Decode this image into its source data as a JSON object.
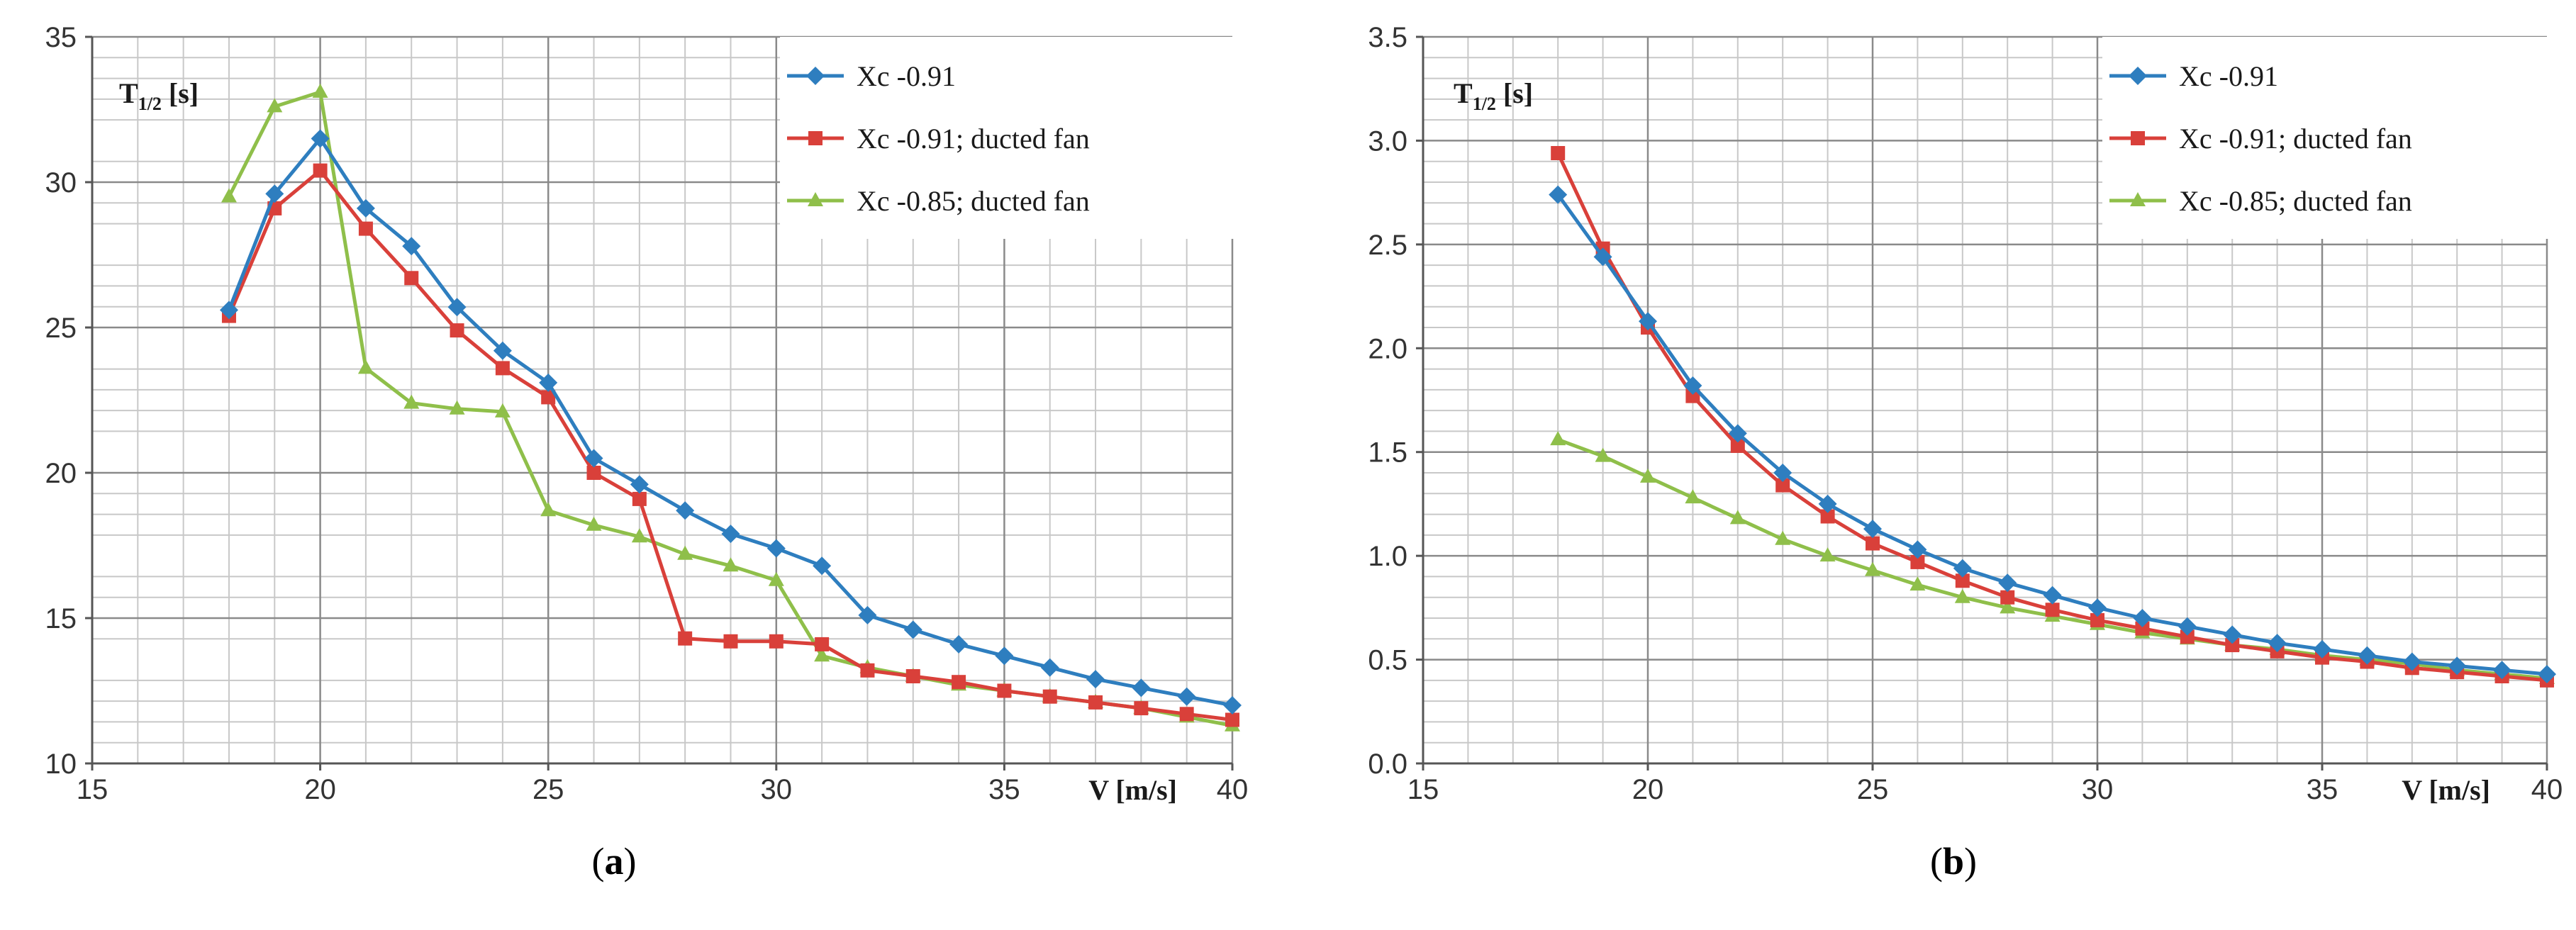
{
  "chart_data": [
    {
      "id": "a",
      "type": "line",
      "caption_prefix": "(",
      "caption_letter": "a",
      "caption_suffix": ")",
      "ylabel_main": "T",
      "ylabel_sub": "1/2",
      "ylabel_unit": " [s]",
      "xlabel": "V [m/s]",
      "xlim": [
        15,
        40
      ],
      "ylim": [
        10,
        35
      ],
      "xticks": [
        15,
        20,
        25,
        30,
        35,
        40
      ],
      "yticks": [
        10,
        15,
        20,
        25,
        30,
        35
      ],
      "ytick_labels": [
        "10",
        "15",
        "20",
        "25",
        "30",
        "35"
      ],
      "x": [
        18,
        19,
        20,
        21,
        22,
        23,
        24,
        25,
        26,
        27,
        28,
        29,
        30,
        31,
        32,
        33,
        34,
        35,
        36,
        37,
        38,
        39,
        40
      ],
      "series": [
        {
          "name": "Xc  -0.91",
          "color": "#2e7ebf",
          "marker": "diamond",
          "values": [
            25.6,
            29.6,
            31.5,
            29.1,
            27.8,
            25.7,
            24.2,
            23.1,
            20.5,
            19.6,
            18.7,
            17.9,
            17.4,
            16.8,
            15.1,
            14.6,
            14.1,
            13.7,
            13.3,
            12.9,
            12.6,
            12.3,
            12.0
          ]
        },
        {
          "name": "Xc -0.91; ducted fan",
          "color": "#d9403a",
          "marker": "square",
          "values": [
            25.4,
            29.1,
            30.4,
            28.4,
            26.7,
            24.9,
            23.6,
            22.6,
            20.0,
            19.1,
            14.3,
            14.2,
            14.2,
            14.1,
            13.2,
            13.0,
            12.8,
            12.5,
            12.3,
            12.1,
            11.9,
            11.7,
            11.5
          ]
        },
        {
          "name": "Xc -0.85; ducted fan",
          "color": "#8fbf4a",
          "marker": "triangle",
          "values": [
            29.5,
            32.6,
            33.1,
            23.6,
            22.4,
            22.2,
            22.1,
            18.7,
            18.2,
            17.8,
            17.2,
            16.8,
            16.3,
            13.7,
            13.3,
            13.0,
            12.7,
            12.5,
            12.3,
            12.1,
            11.9,
            11.6,
            11.3
          ]
        }
      ]
    },
    {
      "id": "b",
      "type": "line",
      "caption_prefix": "(",
      "caption_letter": "b",
      "caption_suffix": ")",
      "ylabel_main": "T",
      "ylabel_sub": "1/2",
      "ylabel_unit": " [s]",
      "xlabel": "V [m/s]",
      "xlim": [
        15,
        40
      ],
      "ylim": [
        0,
        3.5
      ],
      "xticks": [
        15,
        20,
        25,
        30,
        35,
        40
      ],
      "yticks": [
        0,
        0.5,
        1.0,
        1.5,
        2.0,
        2.5,
        3.0,
        3.5
      ],
      "ytick_labels": [
        "0.0",
        "0.5",
        "1.0",
        "1.5",
        "2.0",
        "2.5",
        "3.0",
        "3.5"
      ],
      "x": [
        18,
        19,
        20,
        21,
        22,
        23,
        24,
        25,
        26,
        27,
        28,
        29,
        30,
        31,
        32,
        33,
        34,
        35,
        36,
        37,
        38,
        39,
        40
      ],
      "series": [
        {
          "name": "Xc  -0.91",
          "color": "#2e7ebf",
          "marker": "diamond",
          "values": [
            2.74,
            2.44,
            2.13,
            1.82,
            1.59,
            1.4,
            1.25,
            1.13,
            1.03,
            0.94,
            0.87,
            0.81,
            0.75,
            0.7,
            0.66,
            0.62,
            0.58,
            0.55,
            0.52,
            0.49,
            0.47,
            0.45,
            0.43
          ]
        },
        {
          "name": "Xc -0.91; ducted fan",
          "color": "#d9403a",
          "marker": "square",
          "values": [
            2.94,
            2.48,
            2.1,
            1.77,
            1.53,
            1.34,
            1.19,
            1.06,
            0.97,
            0.88,
            0.8,
            0.74,
            0.69,
            0.65,
            0.61,
            0.57,
            0.54,
            0.51,
            0.49,
            0.46,
            0.44,
            0.42,
            0.4
          ]
        },
        {
          "name": "Xc -0.85; ducted fan",
          "color": "#8fbf4a",
          "marker": "triangle",
          "values": [
            1.56,
            1.48,
            1.38,
            1.28,
            1.18,
            1.08,
            1.0,
            0.93,
            0.86,
            0.8,
            0.75,
            0.71,
            0.67,
            0.63,
            0.6,
            0.57,
            0.55,
            0.52,
            0.5,
            0.48,
            0.45,
            0.43,
            0.41
          ]
        }
      ]
    }
  ]
}
